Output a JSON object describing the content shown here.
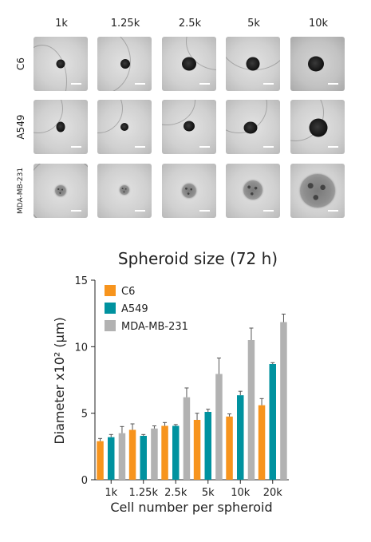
{
  "grid": {
    "columns": [
      "1k",
      "1.25k",
      "2.5k",
      "5k",
      "10k"
    ],
    "rows": [
      "C6",
      "A549",
      "MDA-MB-231"
    ]
  },
  "chart_data": {
    "type": "bar",
    "title": "Spheroid size (72 h)",
    "xlabel": "Cell number per spheroid",
    "ylabel": "Diameter x10² (μm)",
    "ylim": [
      0,
      15
    ],
    "yticks": [
      0,
      5,
      10,
      15
    ],
    "categories": [
      "1k",
      "1.25k",
      "2.5k",
      "5k",
      "10k",
      "20k"
    ],
    "legend": "top-left",
    "series": [
      {
        "name": "C6",
        "color": "#f7941d",
        "values": [
          2.9,
          3.75,
          4.05,
          4.5,
          4.75,
          5.6
        ],
        "errors": [
          0.2,
          0.45,
          0.25,
          0.5,
          0.2,
          0.5
        ]
      },
      {
        "name": "A549",
        "color": "#00929f",
        "values": [
          3.2,
          3.3,
          4.05,
          5.1,
          6.35,
          8.7
        ],
        "errors": [
          0.2,
          0.1,
          0.1,
          0.2,
          0.3,
          0.1
        ]
      },
      {
        "name": "MDA-MB-231",
        "color": "#b2b2b2",
        "values": [
          3.5,
          3.85,
          6.2,
          7.95,
          10.5,
          11.85
        ],
        "errors": [
          0.5,
          0.2,
          0.7,
          1.2,
          0.9,
          0.6
        ]
      }
    ]
  }
}
